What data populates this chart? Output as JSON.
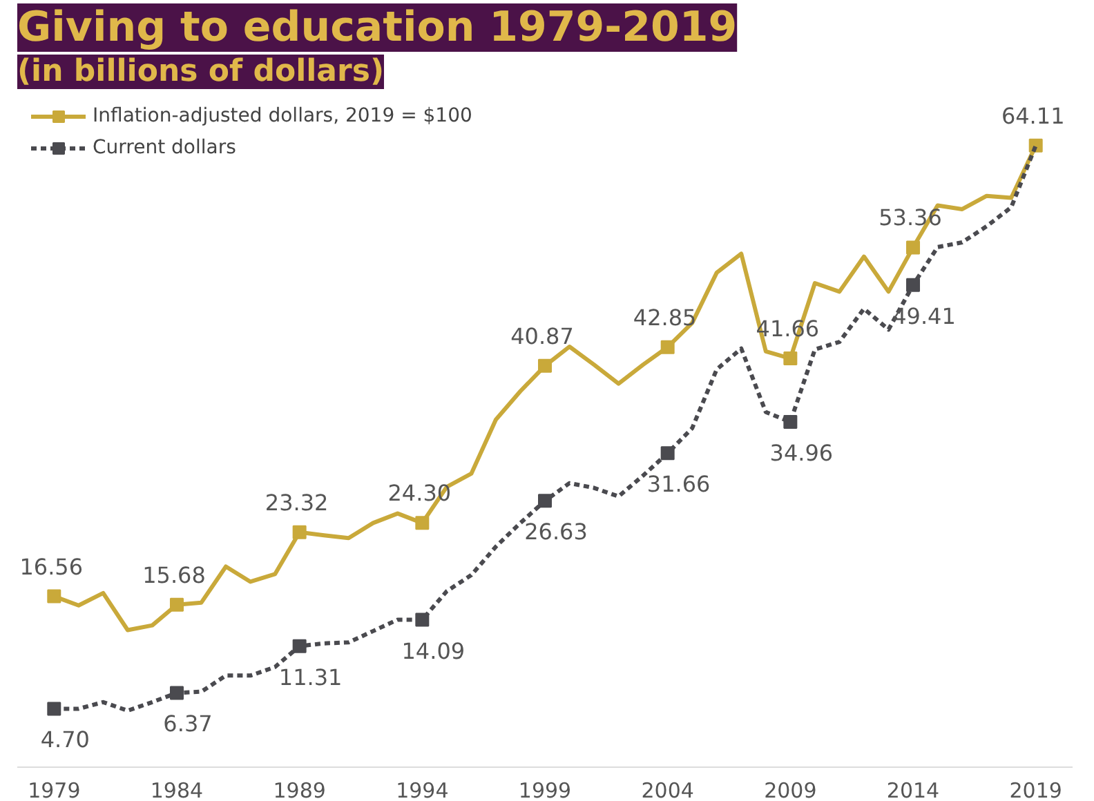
{
  "chart_data": {
    "type": "line",
    "title": "Giving to education 1979-2019",
    "subtitle": "(in billions of dollars)",
    "x": [
      1979,
      1980,
      1981,
      1982,
      1983,
      1984,
      1985,
      1986,
      1987,
      1988,
      1989,
      1990,
      1991,
      1992,
      1993,
      1994,
      1995,
      1996,
      1997,
      1998,
      1999,
      2000,
      2001,
      2002,
      2003,
      2004,
      2005,
      2006,
      2007,
      2008,
      2009,
      2010,
      2011,
      2012,
      2013,
      2014,
      2015,
      2016,
      2017,
      2018,
      2019
    ],
    "series": [
      {
        "name": "Inflation-adjusted dollars, 2019 = $100",
        "color": "#c9a93a",
        "line_style": "solid",
        "values": [
          16.56,
          15.6,
          16.9,
          13.0,
          13.5,
          15.68,
          15.9,
          19.7,
          18.1,
          18.9,
          23.32,
          23.0,
          22.7,
          24.3,
          25.3,
          24.3,
          28.1,
          29.5,
          35.2,
          38.2,
          40.87,
          42.9,
          41.0,
          39.0,
          41.0,
          42.85,
          45.4,
          50.7,
          52.7,
          42.4,
          41.66,
          49.6,
          48.7,
          52.4,
          48.7,
          53.36,
          57.8,
          57.4,
          58.8,
          58.6,
          64.11
        ],
        "value_labels": [
          "16.56",
          null,
          null,
          null,
          null,
          "15.68",
          null,
          null,
          null,
          null,
          "23.32",
          null,
          null,
          null,
          null,
          "24.30",
          null,
          null,
          null,
          null,
          "40.87",
          null,
          null,
          null,
          null,
          "42.85",
          null,
          null,
          null,
          null,
          "41.66",
          null,
          null,
          null,
          null,
          "53.36",
          null,
          null,
          null,
          null,
          "64.11"
        ]
      },
      {
        "name": "Current dollars",
        "color": "#4a4a4f",
        "line_style": "dashed",
        "values": [
          4.7,
          4.7,
          5.4,
          4.5,
          5.4,
          6.37,
          6.5,
          8.2,
          8.2,
          9.1,
          11.31,
          11.6,
          11.7,
          12.9,
          14.1,
          14.09,
          17.1,
          18.8,
          21.8,
          24.3,
          26.63,
          28.5,
          28.0,
          27.1,
          29.3,
          31.66,
          34.3,
          40.5,
          42.7,
          36.0,
          34.96,
          42.6,
          43.4,
          46.9,
          44.7,
          49.41,
          53.4,
          53.9,
          55.6,
          57.6,
          64.11
        ],
        "value_labels": [
          "4.70",
          null,
          null,
          null,
          null,
          "6.37",
          null,
          null,
          null,
          null,
          "11.31",
          null,
          null,
          null,
          null,
          "14.09",
          null,
          null,
          null,
          null,
          "26.63",
          null,
          null,
          null,
          null,
          "31.66",
          null,
          null,
          null,
          null,
          "34.96",
          null,
          null,
          null,
          null,
          "49.41",
          null,
          null,
          null,
          null,
          null
        ]
      }
    ],
    "xlim": [
      1977.5,
      2020.5
    ],
    "xticks": [
      1979,
      1984,
      1989,
      1994,
      1999,
      2004,
      2009,
      2014,
      2019
    ],
    "tick_labels": "x",
    "grid": false,
    "legend": "top left"
  }
}
